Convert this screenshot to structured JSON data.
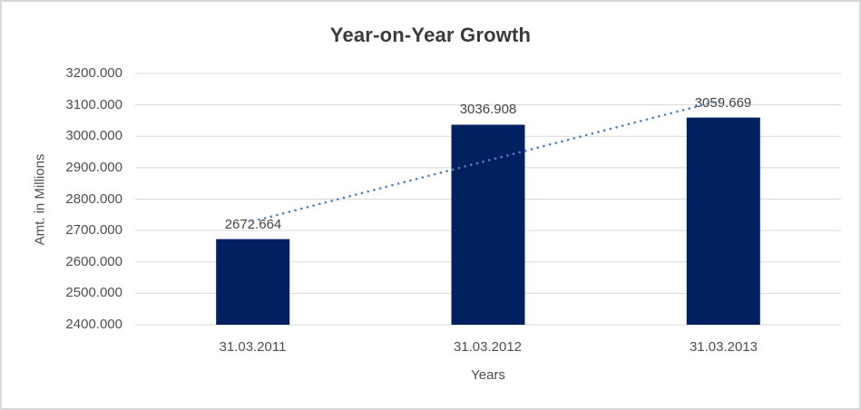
{
  "chart": {
    "title": "Year-on-Year Growth",
    "x_axis_title": "Years",
    "y_axis_title": "Amt. in Millions"
  },
  "chart_data": {
    "type": "bar",
    "title": "Year-on-Year Growth",
    "xlabel": "Years",
    "ylabel": "Amt. in Millions",
    "categories": [
      "31.03.2011",
      "31.03.2012",
      "31.03.2013"
    ],
    "values": [
      2672.664,
      3036.908,
      3059.669
    ],
    "data_labels": [
      "2672.664",
      "3036.908",
      "3059.669"
    ],
    "y_ticks": [
      "3200.000",
      "3100.000",
      "3000.000",
      "2900.000",
      "2800.000",
      "2700.000",
      "2600.000",
      "2500.000",
      "2400.000"
    ],
    "ylim": [
      2400,
      3200
    ],
    "y_tick_step": 100,
    "grid": true,
    "legend": "none",
    "bar_color": "#002060",
    "gridline_color": "#d9d9d9",
    "text_color": "#4f4f4f",
    "title_color": "#3b3b3b",
    "trendline": {
      "type": "linear",
      "style": "dotted",
      "color": "#4f81bd",
      "endpoint_values": [
        2729.578,
        3116.583
      ]
    }
  }
}
